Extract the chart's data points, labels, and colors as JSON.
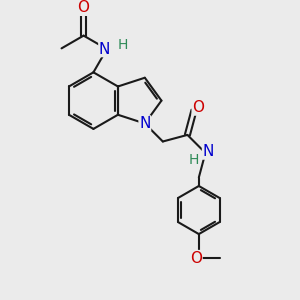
{
  "background_color": "#EBEBEB",
  "bond_color": "#1a1a1a",
  "bond_width": 1.5,
  "N_color": "#0000CD",
  "O_color": "#CC0000",
  "H_color": "#2E8B57",
  "font_size_atom": 11,
  "figsize": [
    3.0,
    3.0
  ],
  "dpi": 100,
  "xlim": [
    0.0,
    10.0
  ],
  "ylim": [
    0.0,
    10.0
  ]
}
